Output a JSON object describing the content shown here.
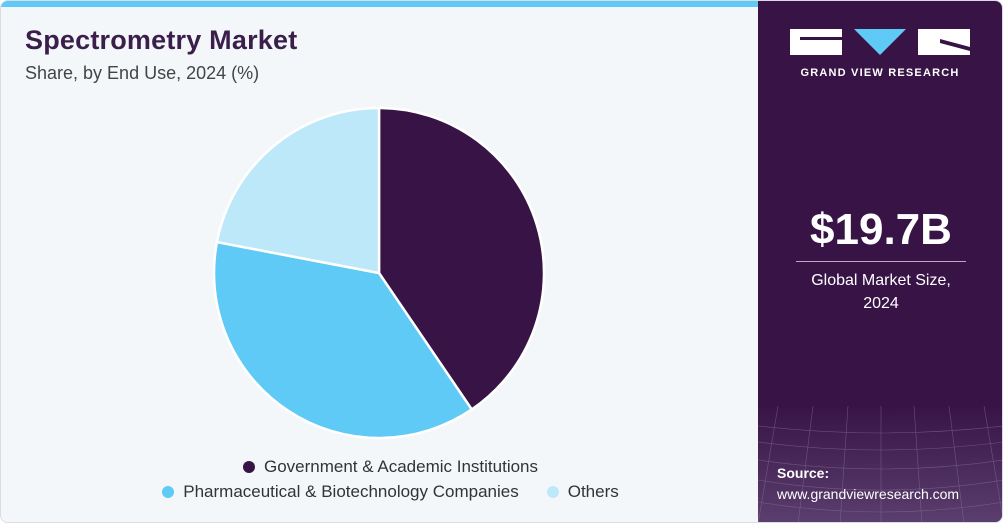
{
  "header": {
    "title": "Spectrometry Market",
    "subtitle": "Share, by End Use, 2024 (%)"
  },
  "chart_data": {
    "type": "pie",
    "title": "Spectrometry Market",
    "subtitle": "Share, by End Use, 2024 (%)",
    "categories": [
      "Government & Academic Institutions",
      "Pharmaceutical & Biotechnology Companies",
      "Others"
    ],
    "values": [
      40.5,
      37.5,
      22.0
    ],
    "colors": [
      "#381446",
      "#5ecaf5",
      "#bde8fa"
    ],
    "legend_position": "bottom"
  },
  "sidebar": {
    "brand": "GRAND VIEW RESEARCH",
    "market_size": "$19.7B",
    "market_size_label_line1": "Global Market Size,",
    "market_size_label_line2": "2024",
    "source_label": "Source:",
    "source_url": "www.grandviewresearch.com"
  }
}
